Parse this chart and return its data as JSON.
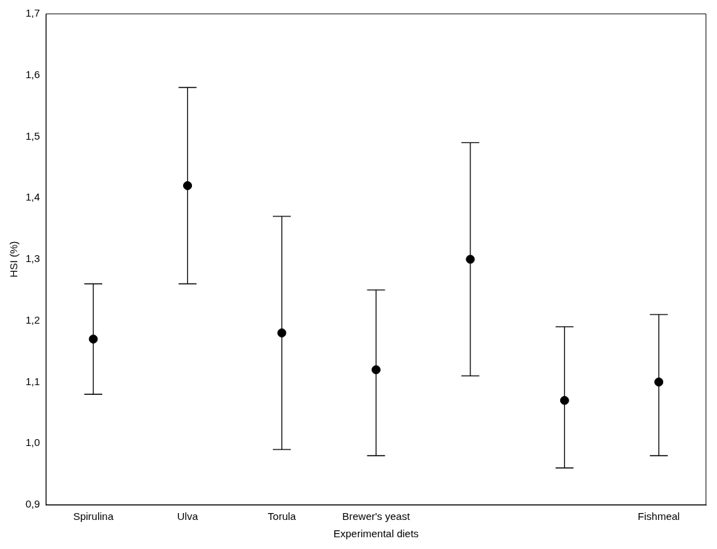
{
  "chart_data": {
    "type": "scatter",
    "xlabel": "Experimental diets",
    "ylabel": "HSI (%)",
    "categories": [
      "Spirulina",
      "Ulva",
      "Torula",
      "Brewer's yeast",
      null,
      null,
      "Fishmeal"
    ],
    "series": [
      {
        "color": "#000000",
        "values": [
          1.17,
          1.42,
          1.18,
          1.12,
          1.3,
          1.07,
          1.1
        ],
        "errors": [
          [
            1.08,
            1.26
          ],
          [
            1.26,
            1.58
          ],
          [
            0.99,
            1.37
          ],
          [
            0.98,
            1.25
          ],
          [
            1.11,
            1.49
          ],
          [
            0.96,
            1.19
          ],
          [
            0.98,
            1.21
          ]
        ]
      }
    ],
    "ylim": [
      0.9,
      1.7
    ],
    "yticks": [
      {
        "value": 0.9,
        "label": "0,9"
      },
      {
        "value": 1.0,
        "label": "1,0"
      },
      {
        "value": 1.1,
        "label": "1,1"
      },
      {
        "value": 1.2,
        "label": "1,2"
      },
      {
        "value": 1.3,
        "label": "1,3"
      },
      {
        "value": 1.4,
        "label": "1,4"
      },
      {
        "value": 1.5,
        "label": "1,5"
      },
      {
        "value": 1.6,
        "label": "1,6"
      },
      {
        "value": 1.7,
        "label": "1,7"
      }
    ],
    "grid": false,
    "legend": false,
    "marker": "circle"
  }
}
